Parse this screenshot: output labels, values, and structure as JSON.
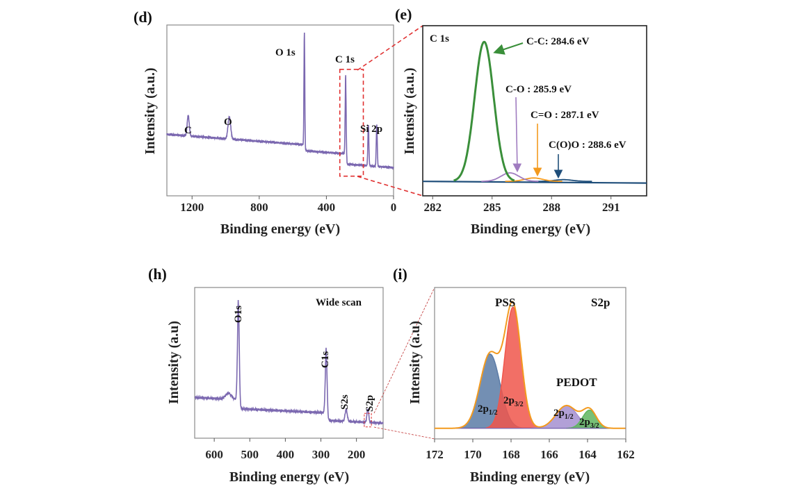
{
  "chart_data": [
    {
      "panel": "(d)",
      "type": "line",
      "xlabel": "Binding energy (eV)",
      "ylabel": "Intensity (a.u.)",
      "xlim": [
        1350,
        0
      ],
      "ylim": [
        0,
        1
      ],
      "xticks": [
        1200,
        800,
        400,
        0
      ],
      "series_color": "#7b68b0",
      "peaks": [
        {
          "label": "C",
          "x": 1223,
          "height": 0.12
        },
        {
          "label": "O",
          "x": 978,
          "height": 0.13
        },
        {
          "label": "O 1s",
          "x": 531,
          "height": 0.66
        },
        {
          "label": "C 1s",
          "x": 285,
          "height": 0.46
        },
        {
          "label": "Si 2p",
          "x": 150,
          "height": 0.24
        },
        {
          "label": "Si 2p",
          "x": 100,
          "height": 0.24
        }
      ],
      "zoom_box_x": [
        320,
        180
      ]
    },
    {
      "panel": "(e)",
      "type": "line",
      "title": "C 1s",
      "xlabel": "Binding energy (eV)",
      "ylabel": "Intensity (a.u.)",
      "xlim": [
        281.5,
        292.8
      ],
      "ylim": [
        0,
        1
      ],
      "xticks": [
        282,
        285,
        288,
        291
      ],
      "components": [
        {
          "label": "C-C: 284.6 eV",
          "center": 284.6,
          "height": 0.82,
          "sigma": 0.48,
          "color": "#3a8f3a"
        },
        {
          "label": "C-O : 285.9 eV",
          "center": 285.9,
          "height": 0.05,
          "sigma": 0.45,
          "color": "#a07cc0"
        },
        {
          "label": "C=O : 287.1 eV",
          "center": 287.1,
          "height": 0.02,
          "sigma": 0.45,
          "color": "#f39a1e"
        },
        {
          "label": "C(O)O : 288.6 eV",
          "center": 288.6,
          "height": 0.01,
          "sigma": 0.45,
          "color": "#1f4e7a"
        }
      ],
      "baseline_color": "#1f4e7a"
    },
    {
      "panel": "(h)",
      "type": "line",
      "annotation": "Wide scan",
      "xlabel": "Binding energy (eV)",
      "ylabel": "Intensity (a.u)",
      "xlim": [
        655,
        125
      ],
      "ylim": [
        0,
        1
      ],
      "xticks": [
        600,
        500,
        400,
        300,
        200
      ],
      "series_color": "#7b68b0",
      "peaks": [
        {
          "label": "O1s",
          "x": 532,
          "height": 0.68
        },
        {
          "label": "C1s",
          "x": 285,
          "height": 0.44
        },
        {
          "label": "S2s",
          "x": 229,
          "height": 0.08
        },
        {
          "label": "S2p",
          "x": 168,
          "height": 0.09
        }
      ],
      "zoom_box_x": [
        178,
        158
      ]
    },
    {
      "panel": "(i)",
      "type": "area",
      "annotation": "S2p",
      "xlabel": "Binding energy (eV)",
      "ylabel": "Intensity (a.u)",
      "xlim": [
        172,
        162
      ],
      "ylim": [
        0,
        1
      ],
      "xticks": [
        172,
        170,
        168,
        166,
        164,
        162
      ],
      "group_labels": [
        "PSS",
        "PEDOT"
      ],
      "envelope_color": "#f39a1e",
      "components": [
        {
          "label_main": "2p",
          "label_sub": "1/2",
          "center": 169.1,
          "height": 0.49,
          "sigma": 0.52,
          "color": "#5b7ba6"
        },
        {
          "label_main": "2p",
          "label_sub": "3/2",
          "center": 167.9,
          "height": 0.8,
          "sigma": 0.42,
          "color": "#f0564b"
        },
        {
          "label_main": "2p",
          "label_sub": "1/2",
          "center": 165.1,
          "height": 0.15,
          "sigma": 0.55,
          "color": "#a48fd0"
        },
        {
          "label_main": "2p",
          "label_sub": "3/2",
          "center": 163.9,
          "height": 0.12,
          "sigma": 0.36,
          "color": "#5fb55f"
        }
      ]
    }
  ]
}
